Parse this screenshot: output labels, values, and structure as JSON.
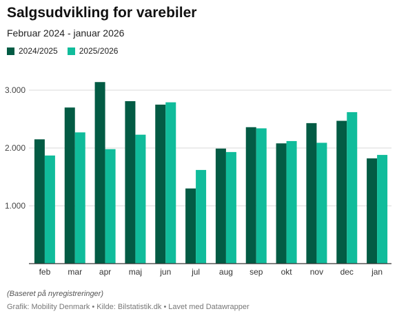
{
  "chart_data": {
    "type": "bar",
    "title": "Salgsudvikling for varebiler",
    "subtitle": "Februar 2024 - januar 2026",
    "categories": [
      "feb",
      "mar",
      "apr",
      "maj",
      "jun",
      "jul",
      "aug",
      "sep",
      "okt",
      "nov",
      "dec",
      "jan"
    ],
    "series": [
      {
        "name": "2024/2025",
        "color": "#035b44",
        "values": [
          2150,
          2700,
          3140,
          2810,
          2750,
          1300,
          1990,
          2360,
          2080,
          2430,
          2470,
          1820
        ]
      },
      {
        "name": "2025/2026",
        "color": "#10bc9b",
        "values": [
          1870,
          2270,
          1980,
          2230,
          2790,
          1620,
          1930,
          2340,
          2120,
          2090,
          2620,
          1880
        ]
      }
    ],
    "yticks": [
      1000,
      2000,
      3000
    ],
    "ytick_labels": [
      "1.000",
      "2.000",
      "3.000"
    ],
    "ylim": [
      0,
      3000
    ],
    "grid": true,
    "legend": "top-left",
    "note": "(Baseret på nyregistreringer)",
    "credit": {
      "grafik": "Grafik: Mobility Denmark",
      "kilde": "Kilde: Bilstatistik.dk",
      "lavet": "Lavet med Datawrapper",
      "separator": "•"
    }
  }
}
